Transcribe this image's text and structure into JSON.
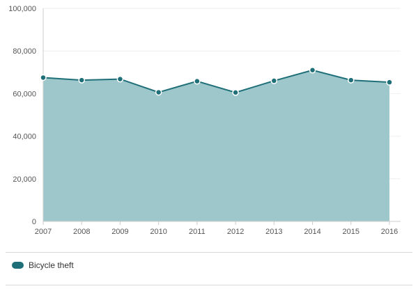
{
  "chart_data": {
    "type": "area",
    "x": [
      "2007",
      "2008",
      "2009",
      "2010",
      "2011",
      "2012",
      "2013",
      "2014",
      "2015",
      "2016"
    ],
    "series": [
      {
        "name": "Bicycle theft",
        "values": [
          67500,
          66300,
          66800,
          60600,
          65800,
          60500,
          66000,
          71000,
          66300,
          65300
        ]
      }
    ],
    "yticks": [
      0,
      20000,
      40000,
      60000,
      80000,
      100000
    ],
    "ytick_labels": [
      "0",
      "20,000",
      "40,000",
      "60,000",
      "80,000",
      "100,000"
    ],
    "ylim": [
      0,
      100000
    ],
    "grid": true,
    "legend_position": "bottom-left"
  },
  "colors": {
    "area_fill": "#9dc7cb",
    "line": "#1f6f78",
    "point_fill": "#1f6f78",
    "point_stroke": "#ffffff",
    "grid": "#eeeeee",
    "axis": "#cccccc"
  }
}
